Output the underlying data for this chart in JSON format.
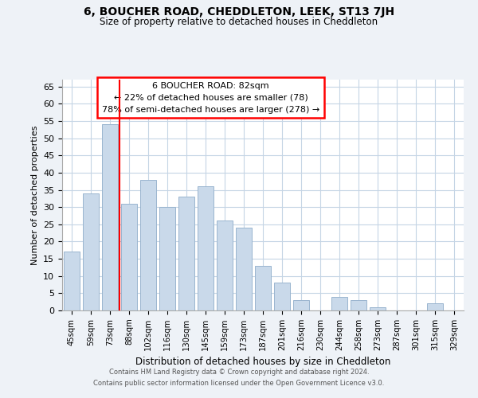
{
  "title": "6, BOUCHER ROAD, CHEDDLETON, LEEK, ST13 7JH",
  "subtitle": "Size of property relative to detached houses in Cheddleton",
  "xlabel": "Distribution of detached houses by size in Cheddleton",
  "ylabel": "Number of detached properties",
  "bar_labels": [
    "45sqm",
    "59sqm",
    "73sqm",
    "88sqm",
    "102sqm",
    "116sqm",
    "130sqm",
    "145sqm",
    "159sqm",
    "173sqm",
    "187sqm",
    "201sqm",
    "216sqm",
    "230sqm",
    "244sqm",
    "258sqm",
    "273sqm",
    "287sqm",
    "301sqm",
    "315sqm",
    "329sqm"
  ],
  "bar_values": [
    17,
    34,
    54,
    31,
    38,
    30,
    33,
    36,
    26,
    24,
    13,
    8,
    3,
    0,
    4,
    3,
    1,
    0,
    0,
    2,
    0
  ],
  "bar_color": "#c9d9ea",
  "bar_edge_color": "#9ab5cf",
  "ylim": [
    0,
    67
  ],
  "yticks": [
    0,
    5,
    10,
    15,
    20,
    25,
    30,
    35,
    40,
    45,
    50,
    55,
    60,
    65
  ],
  "annotation_title": "6 BOUCHER ROAD: 82sqm",
  "annotation_line1": "← 22% of detached houses are smaller (78)",
  "annotation_line2": "78% of semi-detached houses are larger (278) →",
  "footer1": "Contains HM Land Registry data © Crown copyright and database right 2024.",
  "footer2": "Contains public sector information licensed under the Open Government Licence v3.0.",
  "bg_color": "#eef2f7",
  "plot_bg_color": "#ffffff",
  "grid_color": "#c5d5e5"
}
